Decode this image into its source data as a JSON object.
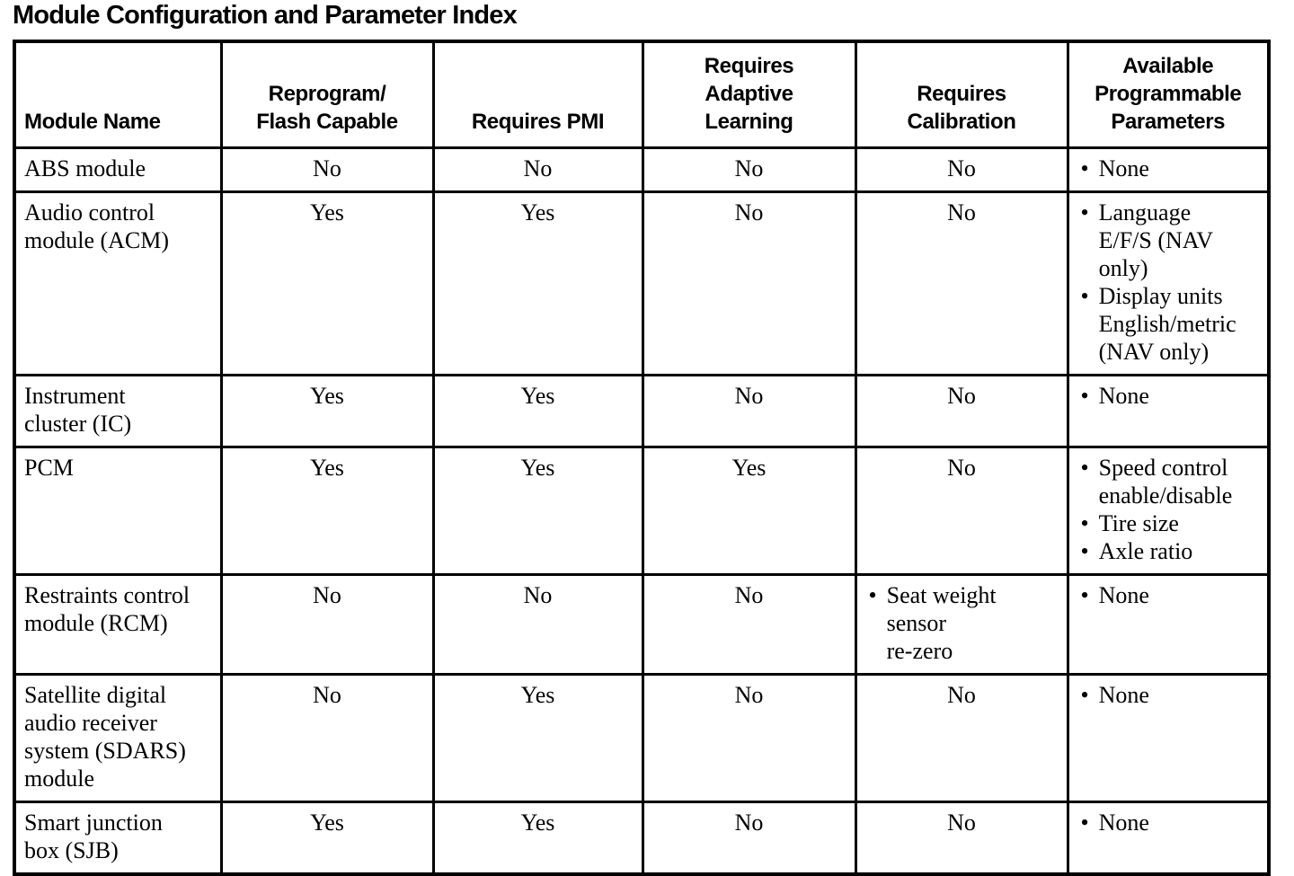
{
  "title": "Module Configuration and Parameter Index",
  "colors": {
    "text": "#000000",
    "border": "#000000",
    "background": "#ffffff"
  },
  "table": {
    "bullet_char": "•",
    "columns": [
      {
        "label": "Module Name"
      },
      {
        "label": "Reprogram/\nFlash Capable"
      },
      {
        "label": "Requires PMI"
      },
      {
        "label": "Requires\nAdaptive\nLearning"
      },
      {
        "label": "Requires\nCalibration"
      },
      {
        "label": "Available\nProgrammable\nParameters"
      }
    ],
    "rows": [
      {
        "module": {
          "text": "ABS module"
        },
        "reprogram_flash_capable": {
          "text": "No"
        },
        "requires_pmi": {
          "text": "No"
        },
        "requires_adaptive_learning": {
          "text": "No"
        },
        "requires_calibration": {
          "text": "No"
        },
        "available_programmable_parameters": {
          "bullets": [
            "None"
          ]
        }
      },
      {
        "module": {
          "text": "Audio control\nmodule (ACM)"
        },
        "reprogram_flash_capable": {
          "text": "Yes"
        },
        "requires_pmi": {
          "text": "Yes"
        },
        "requires_adaptive_learning": {
          "text": "No"
        },
        "requires_calibration": {
          "text": "No"
        },
        "available_programmable_parameters": {
          "bullets": [
            "Language\nE/F/S (NAV\nonly)",
            "Display units\nEnglish/metric\n(NAV only)"
          ]
        }
      },
      {
        "module": {
          "text": "Instrument\ncluster (IC)"
        },
        "reprogram_flash_capable": {
          "text": "Yes"
        },
        "requires_pmi": {
          "text": "Yes"
        },
        "requires_adaptive_learning": {
          "text": "No"
        },
        "requires_calibration": {
          "text": "No"
        },
        "available_programmable_parameters": {
          "bullets": [
            "None"
          ]
        }
      },
      {
        "module": {
          "text": "PCM"
        },
        "reprogram_flash_capable": {
          "text": "Yes"
        },
        "requires_pmi": {
          "text": "Yes"
        },
        "requires_adaptive_learning": {
          "text": "Yes"
        },
        "requires_calibration": {
          "text": "No"
        },
        "available_programmable_parameters": {
          "bullets": [
            "Speed control\nenable/disable",
            "Tire size",
            "Axle ratio"
          ]
        }
      },
      {
        "module": {
          "text": "Restraints control\nmodule (RCM)"
        },
        "reprogram_flash_capable": {
          "text": "No"
        },
        "requires_pmi": {
          "text": "No"
        },
        "requires_adaptive_learning": {
          "text": "No"
        },
        "requires_calibration": {
          "bullets": [
            "Seat weight\nsensor\nre-zero"
          ]
        },
        "available_programmable_parameters": {
          "bullets": [
            "None"
          ]
        }
      },
      {
        "module": {
          "text": "Satellite digital\naudio receiver\nsystem (SDARS)\nmodule"
        },
        "reprogram_flash_capable": {
          "text": "No"
        },
        "requires_pmi": {
          "text": "Yes"
        },
        "requires_adaptive_learning": {
          "text": "No"
        },
        "requires_calibration": {
          "text": "No"
        },
        "available_programmable_parameters": {
          "bullets": [
            "None"
          ]
        }
      },
      {
        "module": {
          "text": "Smart junction\nbox (SJB)"
        },
        "reprogram_flash_capable": {
          "text": "Yes"
        },
        "requires_pmi": {
          "text": "Yes"
        },
        "requires_adaptive_learning": {
          "text": "No"
        },
        "requires_calibration": {
          "text": "No"
        },
        "available_programmable_parameters": {
          "bullets": [
            "None"
          ]
        }
      }
    ]
  }
}
